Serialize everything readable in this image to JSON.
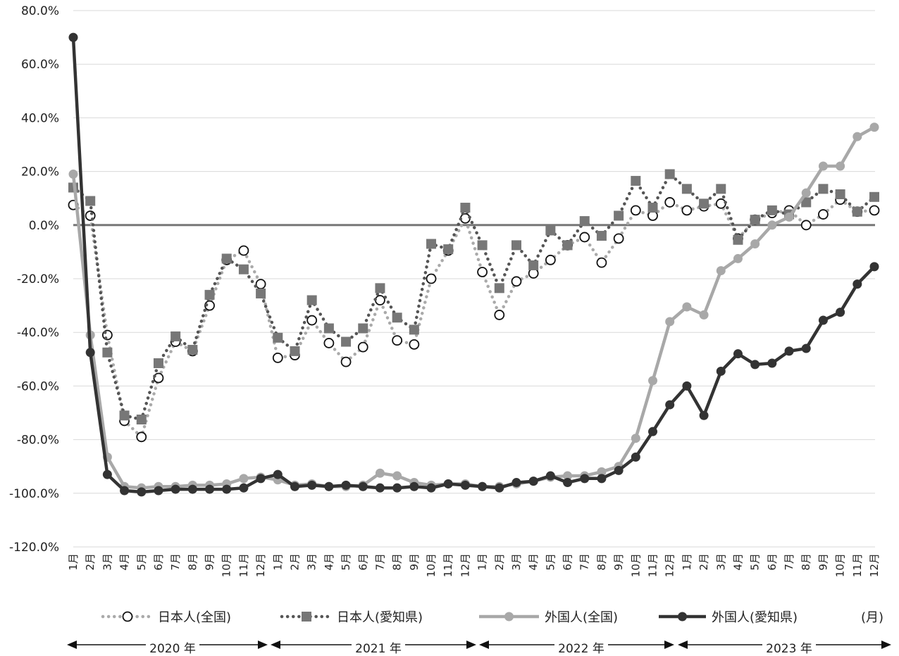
{
  "chart_data": {
    "type": "line",
    "unit_label": "(月)",
    "ylim": [
      -120,
      80
    ],
    "yticks": [
      80,
      60,
      40,
      20,
      0,
      -20,
      -40,
      -60,
      -80,
      -100,
      -120
    ],
    "ytick_labels": [
      "80.0%",
      "60.0%",
      "40.0%",
      "20.0%",
      "0.0%",
      "-20.0%",
      "-40.0%",
      "-60.0%",
      "-80.0%",
      "-100.0%",
      "-120.0%"
    ],
    "categories": [
      "1月",
      "2月",
      "3月",
      "4月",
      "5月",
      "6月",
      "7月",
      "8月",
      "9月",
      "10月",
      "11月",
      "12月",
      "1月",
      "2月",
      "3月",
      "4月",
      "5月",
      "6月",
      "7月",
      "8月",
      "9月",
      "10月",
      "11月",
      "12月",
      "1月",
      "2月",
      "3月",
      "4月",
      "5月",
      "6月",
      "7月",
      "8月",
      "9月",
      "10月",
      "11月",
      "12月",
      "1月",
      "2月",
      "3月",
      "4月",
      "5月",
      "6月",
      "7月",
      "8月",
      "9月",
      "10月",
      "11月",
      "12月"
    ],
    "years": [
      {
        "label": "2020 年"
      },
      {
        "label": "2021 年"
      },
      {
        "label": "2022 年"
      },
      {
        "label": "2023 年"
      }
    ],
    "series": [
      {
        "name": "日本人(全国)",
        "style": "dotted-circle",
        "color": "#aaaaaa",
        "marker_color": "#111111",
        "values": [
          7.5,
          3.5,
          -41,
          -73,
          -79,
          -57,
          -43.5,
          -47,
          -30,
          -13,
          -9.5,
          -22,
          -49.5,
          -48.5,
          -35.5,
          -44,
          -51,
          -45.5,
          -28,
          -43,
          -44.5,
          -20,
          -9.5,
          2.5,
          -17.5,
          -33.5,
          -21,
          -18,
          -13,
          -7.5,
          -4.5,
          -14,
          -5,
          5.5,
          3.5,
          8.5,
          5.5,
          7,
          8,
          -5,
          2,
          4.5,
          5.5,
          0,
          4,
          9.5,
          5,
          5.5
        ]
      },
      {
        "name": "日本人(愛知県)",
        "style": "dotted-square",
        "color": "#555555",
        "marker_color": "#777777",
        "values": [
          14,
          9,
          -47.5,
          -71,
          -72.5,
          -51.5,
          -41.5,
          -46.5,
          -26,
          -12.5,
          -16.5,
          -25.5,
          -42,
          -47,
          -28,
          -38.5,
          -43.5,
          -38.5,
          -23.5,
          -34.5,
          -39,
          -7,
          -9,
          6.5,
          -7.5,
          -23.5,
          -7.5,
          -15,
          -2,
          -7.5,
          1.5,
          -4,
          3.5,
          16.5,
          6.5,
          19,
          13.5,
          8,
          13.5,
          -5.5,
          2,
          5.5,
          4,
          8.5,
          13.5,
          11.5,
          5,
          10.5
        ]
      },
      {
        "name": "外国人(全国)",
        "style": "solid-light",
        "color": "#a8a8a8",
        "values": [
          19,
          -41,
          -86.5,
          -97.5,
          -98,
          -97.5,
          -97.5,
          -97,
          -97,
          -96.5,
          -94.5,
          -94,
          -95,
          -97,
          -96.5,
          -97.5,
          -97.5,
          -97,
          -92.5,
          -93.5,
          -96,
          -97,
          -96.5,
          -96.5,
          -97.5,
          -97.5,
          -96.5,
          -95.5,
          -94,
          -93.5,
          -93.5,
          -92,
          -90,
          -79.5,
          -58,
          -36,
          -30.5,
          -33.5,
          -17,
          -12.5,
          -7,
          0,
          3,
          12,
          22,
          22,
          33,
          36.5
        ]
      },
      {
        "name": "外国人(愛知県)",
        "style": "solid-dark",
        "color": "#333333",
        "values": [
          70,
          -47.5,
          -93,
          -99,
          -99.5,
          -99,
          -98.5,
          -98.5,
          -98.5,
          -98.5,
          -98,
          -94.5,
          -93,
          -97.5,
          -97,
          -97.5,
          -97,
          -97.5,
          -98,
          -98,
          -97.5,
          -98,
          -96.5,
          -97,
          -97.5,
          -98,
          -96,
          -95.5,
          -93.5,
          -96,
          -94.5,
          -94.5,
          -91.5,
          -86.5,
          -77,
          -67,
          -60,
          -71,
          -54.5,
          -48,
          -52,
          -51.5,
          -47,
          -46,
          -35.5,
          -32.5,
          -22,
          -15.5
        ]
      }
    ],
    "zero_line_color": "#777777",
    "gridline_color": "#d9d9d9"
  }
}
